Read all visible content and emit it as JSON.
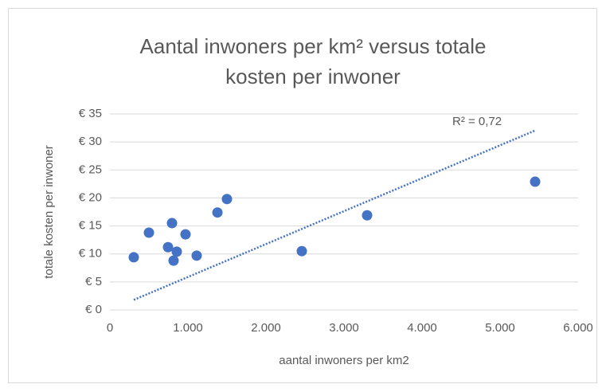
{
  "chart_data": {
    "type": "scatter",
    "title": [
      "Aantal inwoners per km² versus totale",
      "kosten per inwoner"
    ],
    "x_label": "aantal inwoners per km2",
    "y_label": "totale kosten per inwoner",
    "x": [
      306,
      500,
      745,
      796,
      816,
      857,
      969,
      1112,
      1378,
      1500,
      2459,
      3296,
      5449
    ],
    "y": [
      9.4,
      13.8,
      11.2,
      15.5,
      8.8,
      10.4,
      13.5,
      9.7,
      17.4,
      19.8,
      10.5,
      16.9,
      22.9
    ],
    "color": "#4472c4",
    "trendline": {
      "x": [
        306,
        5459
      ],
      "y": [
        1.8,
        32.1
      ],
      "label": "R² = 0,72"
    },
    "xlim": [
      0,
      6000
    ],
    "ylim": [
      0,
      35
    ],
    "xticks": [
      0,
      {
        "value": 1000,
        "label": "1.000"
      },
      {
        "value": 2000,
        "label": "2.000"
      },
      {
        "value": 3000,
        "label": "3.000"
      },
      {
        "value": 4000,
        "label": "4.000"
      },
      {
        "value": 5000,
        "label": "5.000"
      },
      {
        "value": 6000,
        "label": "6.000"
      }
    ],
    "yticks": [
      {
        "value": 0,
        "label": "€ 0"
      },
      {
        "value": 5,
        "label": "€ 5"
      },
      {
        "value": 10,
        "label": "€ 10"
      },
      {
        "value": 15,
        "label": "€ 15"
      },
      {
        "value": 20,
        "label": "€ 20"
      },
      {
        "value": 25,
        "label": "€ 25"
      },
      {
        "value": 30,
        "label": "€ 30"
      },
      {
        "value": 35,
        "label": "€ 35"
      }
    ],
    "grid": true
  }
}
